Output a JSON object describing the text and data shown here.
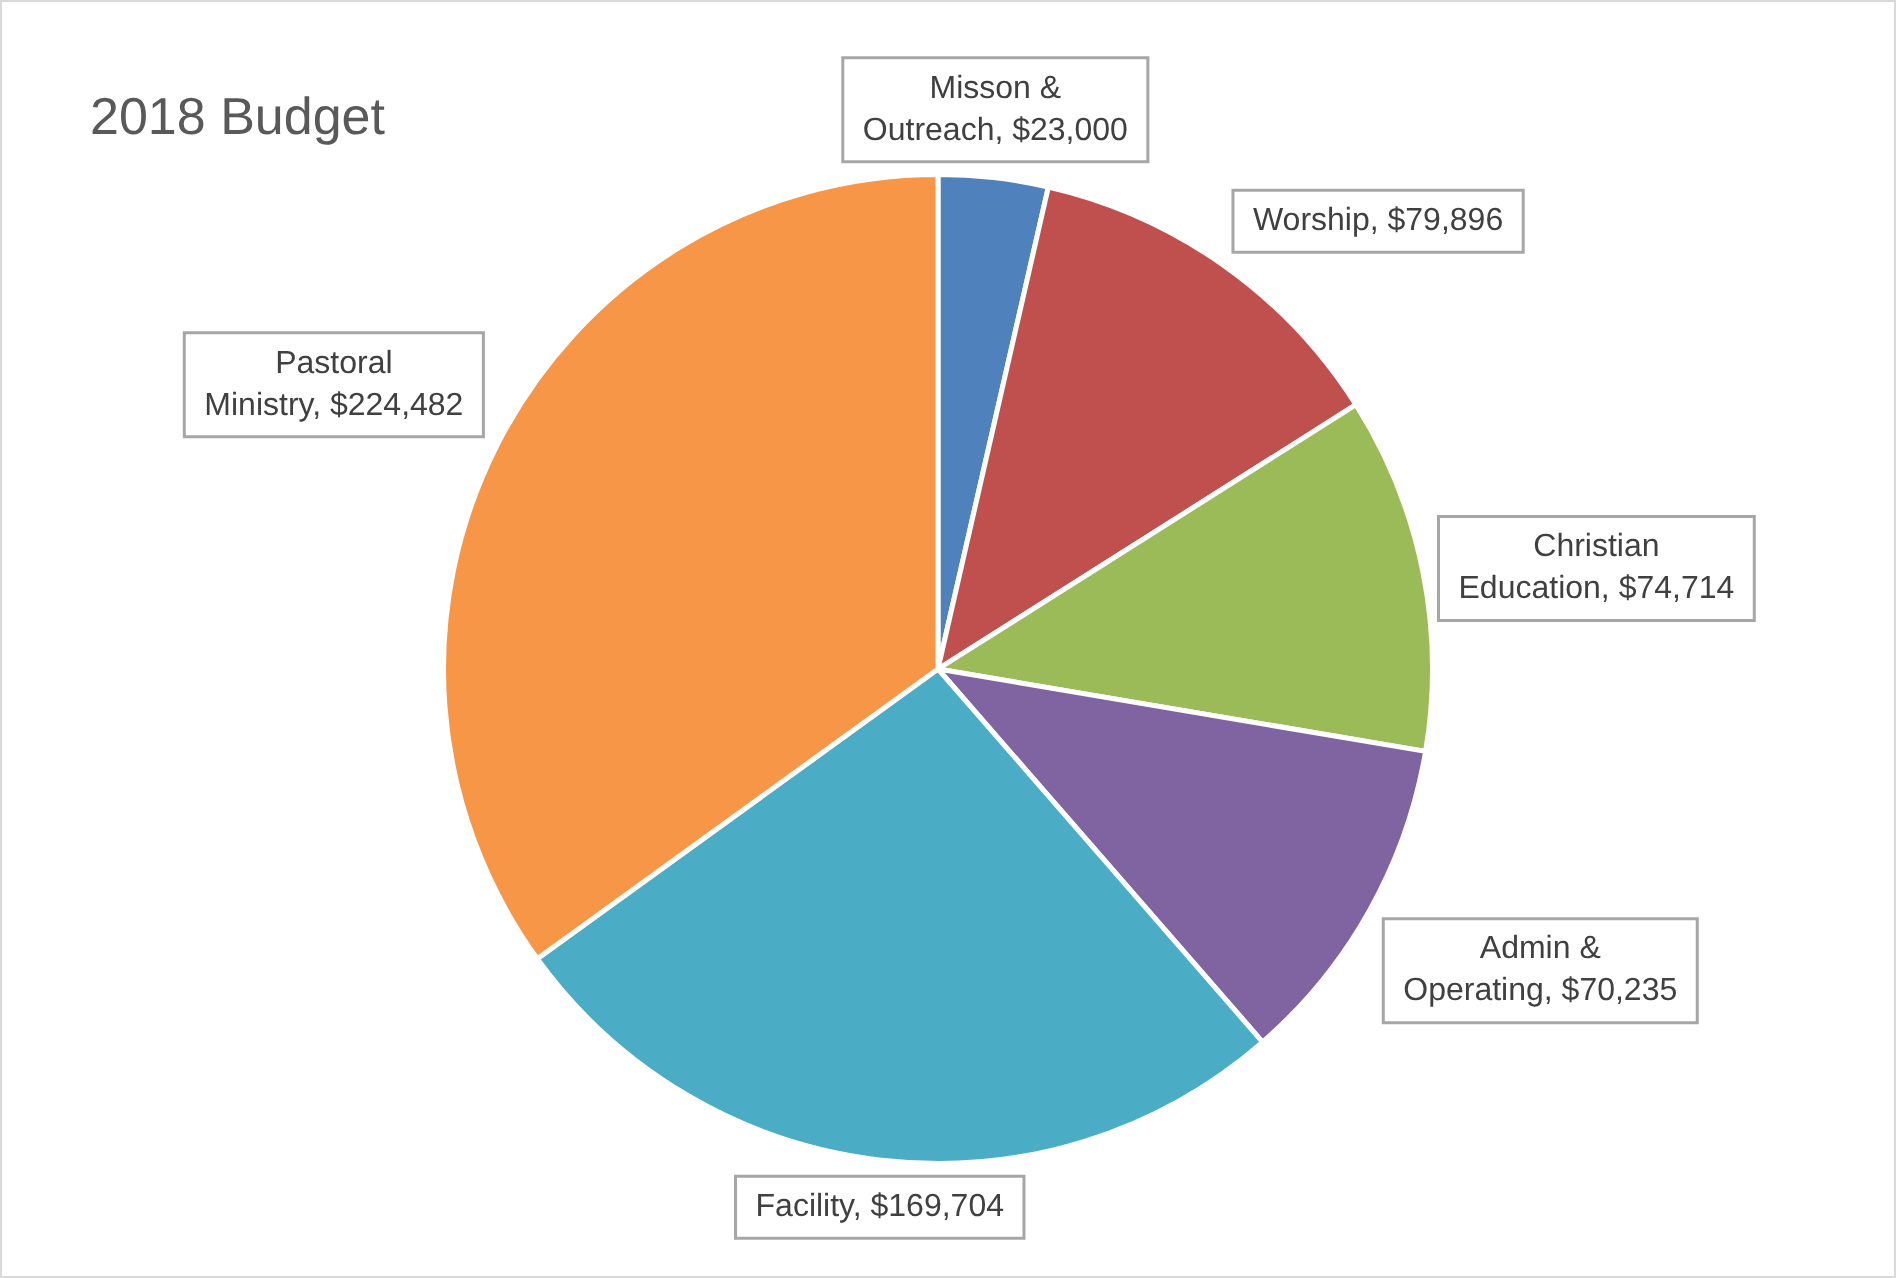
{
  "chart_data": {
    "type": "pie",
    "title": "2018 Budget",
    "categories": [
      "Misson & Outreach",
      "Worship",
      "Christian Education",
      "Admin & Operating",
      "Facility",
      "Pastoral Ministry"
    ],
    "values": [
      23000,
      79896,
      74714,
      70235,
      169704,
      224482
    ],
    "value_labels": [
      "$23,000",
      "$79,896",
      "$74,714",
      "$70,235",
      "$169,704",
      "$224,482"
    ],
    "colors": [
      "#4f81bd",
      "#c0504d",
      "#9bbb59",
      "#8064a2",
      "#4bacc6",
      "#f79646"
    ],
    "legend": false
  }
}
